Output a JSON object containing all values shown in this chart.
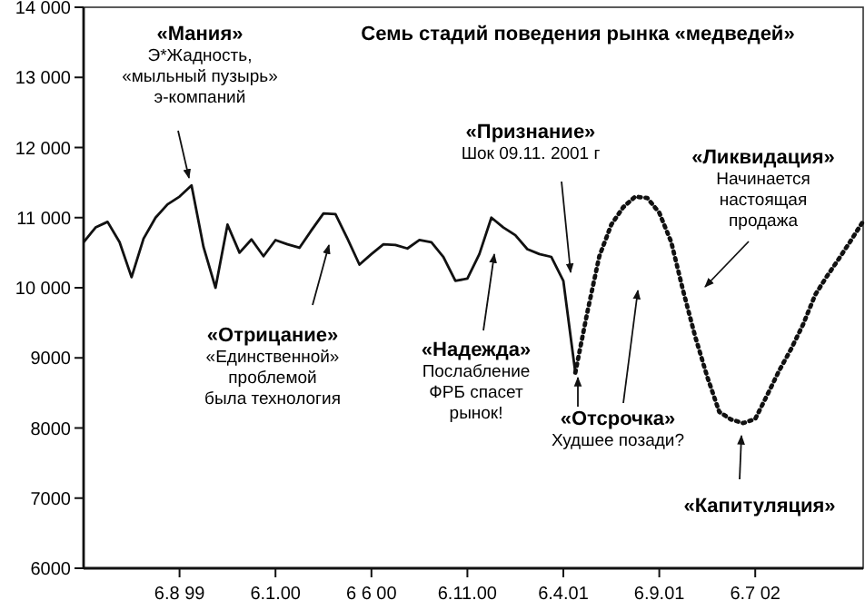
{
  "chart_data": {
    "type": "line",
    "title": "Семь стадий поведения рынка «медведей»",
    "categories": [
      null,
      null,
      null,
      null,
      null,
      null,
      null,
      null,
      "6.8 99",
      null,
      null,
      null,
      null,
      null,
      null,
      null,
      "6.1.00",
      null,
      null,
      null,
      null,
      null,
      null,
      null,
      "6 6 00",
      null,
      null,
      null,
      null,
      null,
      null,
      null,
      "6.11.00",
      null,
      null,
      null,
      null,
      null,
      null,
      null,
      "6.4.01",
      null,
      null,
      null,
      null,
      null,
      null,
      null,
      "6.9.01",
      null,
      null,
      null,
      null,
      null,
      null,
      null,
      "6.7 02",
      null,
      null,
      null,
      null,
      null,
      null,
      null,
      null,
      null
    ],
    "ylim": [
      6000,
      14000
    ],
    "yticks": [
      {
        "value": 6000,
        "label": "6000"
      },
      {
        "value": 7000,
        "label": "7000"
      },
      {
        "value": 8000,
        "label": "8000"
      },
      {
        "value": 9000,
        "label": "9000"
      },
      {
        "value": 10000,
        "label": "10 000"
      },
      {
        "value": 11000,
        "label": "11 000"
      },
      {
        "value": 12000,
        "label": "12 000"
      },
      {
        "value": 13000,
        "label": "13 000"
      },
      {
        "value": 14000,
        "label": "14 000"
      }
    ],
    "grid": false,
    "series": [
      {
        "color": "#111111",
        "line_style": "solid",
        "values": [
          10650,
          10860,
          10940,
          10650,
          10150,
          10700,
          11000,
          11190,
          11300,
          11460,
          10580,
          10000,
          10900,
          10500,
          10690,
          10450,
          10680,
          10620,
          10570,
          10820,
          11060,
          11050,
          10700,
          10330,
          10480,
          10620,
          10610,
          10560,
          10680,
          10650,
          10440,
          10100,
          10130,
          10480,
          11000,
          10860,
          10750,
          10550,
          10480,
          10440,
          10100,
          8790,
          null,
          null,
          null,
          null,
          null,
          null,
          null,
          null,
          null,
          null,
          null,
          null,
          null,
          null,
          null,
          null,
          null,
          null,
          null,
          null,
          null,
          null,
          null,
          null
        ]
      },
      {
        "color": "#111111",
        "line_style": "dotted",
        "values": [
          null,
          null,
          null,
          null,
          null,
          null,
          null,
          null,
          null,
          null,
          null,
          null,
          null,
          null,
          null,
          null,
          null,
          null,
          null,
          null,
          null,
          null,
          null,
          null,
          null,
          null,
          null,
          null,
          null,
          null,
          null,
          null,
          null,
          null,
          null,
          null,
          null,
          null,
          null,
          null,
          null,
          8790,
          9650,
          10450,
          10900,
          11150,
          11300,
          11280,
          11070,
          10650,
          9950,
          9300,
          8730,
          8230,
          8120,
          8070,
          8130,
          8470,
          8820,
          9130,
          9480,
          9900,
          10170,
          10420,
          10680,
          10950
        ]
      }
    ],
    "annotations": [
      "«Мания»\nЭ*Жадность,\n«мыльный пузырь»\nэ-компаний",
      "«Отрицание»\n«Единственной»\nпроблемой\nбыла технология",
      "«Надежда»\nПослабление\nФРБ спасет\nрынок!",
      "«Признание»\nШок 09.11. 2001 г",
      "«Ликвидация»\nНачинается\nнастоящая\nпродажа",
      "«Отсрочка»\nХудшее позади?",
      "«Капитуляция»"
    ]
  }
}
